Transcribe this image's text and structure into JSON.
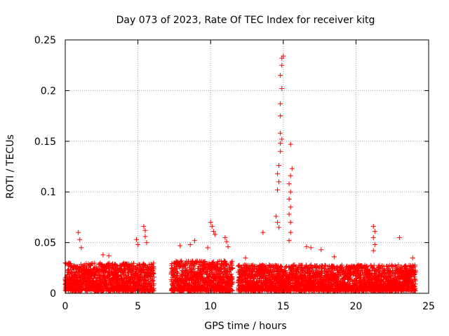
{
  "chart_data": {
    "type": "scatter",
    "title": "Day 073 of 2023, Rate Of TEC Index for receiver kitg",
    "xlabel": "GPS time / hours",
    "ylabel": "ROTI / TECUs",
    "xlim": [
      0,
      25
    ],
    "ylim": [
      0,
      0.25
    ],
    "x_ticks": [
      0,
      5,
      10,
      15,
      20,
      25
    ],
    "x_tick_labels": [
      "0",
      "5",
      "10",
      "15",
      "20",
      "25"
    ],
    "y_ticks": [
      0,
      0.05,
      0.1,
      0.15,
      0.2,
      0.25
    ],
    "y_tick_labels": [
      "0",
      "0.05",
      "0.1",
      "0.15",
      "0.2",
      "0.25"
    ],
    "grid": true,
    "marker": "+",
    "marker_color": "#ff0000",
    "data_segments": [
      {
        "x_start": 0.0,
        "x_end": 6.1,
        "baseline_max": 0.028
      },
      {
        "x_start": 7.3,
        "x_end": 11.5,
        "baseline_max": 0.03
      },
      {
        "x_start": 11.9,
        "x_end": 24.1,
        "baseline_max": 0.026
      }
    ],
    "notable_points": [
      {
        "x": 0.9,
        "y": 0.06
      },
      {
        "x": 1.0,
        "y": 0.053
      },
      {
        "x": 1.1,
        "y": 0.045
      },
      {
        "x": 2.6,
        "y": 0.038
      },
      {
        "x": 3.0,
        "y": 0.037
      },
      {
        "x": 4.9,
        "y": 0.053
      },
      {
        "x": 5.0,
        "y": 0.048
      },
      {
        "x": 5.4,
        "y": 0.066
      },
      {
        "x": 5.5,
        "y": 0.062
      },
      {
        "x": 5.5,
        "y": 0.056
      },
      {
        "x": 5.6,
        "y": 0.05
      },
      {
        "x": 7.9,
        "y": 0.047
      },
      {
        "x": 8.6,
        "y": 0.048
      },
      {
        "x": 8.9,
        "y": 0.052
      },
      {
        "x": 9.8,
        "y": 0.045
      },
      {
        "x": 10.0,
        "y": 0.07
      },
      {
        "x": 10.1,
        "y": 0.066
      },
      {
        "x": 10.2,
        "y": 0.061
      },
      {
        "x": 10.3,
        "y": 0.058
      },
      {
        "x": 11.0,
        "y": 0.055
      },
      {
        "x": 11.1,
        "y": 0.051
      },
      {
        "x": 11.2,
        "y": 0.046
      },
      {
        "x": 12.4,
        "y": 0.035
      },
      {
        "x": 13.6,
        "y": 0.06
      },
      {
        "x": 14.5,
        "y": 0.076
      },
      {
        "x": 14.6,
        "y": 0.07
      },
      {
        "x": 14.7,
        "y": 0.065
      },
      {
        "x": 14.6,
        "y": 0.102
      },
      {
        "x": 14.7,
        "y": 0.11
      },
      {
        "x": 14.6,
        "y": 0.118
      },
      {
        "x": 14.7,
        "y": 0.126
      },
      {
        "x": 14.8,
        "y": 0.14
      },
      {
        "x": 14.8,
        "y": 0.148
      },
      {
        "x": 14.9,
        "y": 0.152
      },
      {
        "x": 14.8,
        "y": 0.158
      },
      {
        "x": 14.8,
        "y": 0.175
      },
      {
        "x": 14.8,
        "y": 0.187
      },
      {
        "x": 14.9,
        "y": 0.202
      },
      {
        "x": 14.8,
        "y": 0.215
      },
      {
        "x": 14.9,
        "y": 0.225
      },
      {
        "x": 14.9,
        "y": 0.232
      },
      {
        "x": 15.0,
        "y": 0.234
      },
      {
        "x": 15.5,
        "y": 0.147
      },
      {
        "x": 15.6,
        "y": 0.123
      },
      {
        "x": 15.5,
        "y": 0.116
      },
      {
        "x": 15.4,
        "y": 0.108
      },
      {
        "x": 15.5,
        "y": 0.1
      },
      {
        "x": 15.4,
        "y": 0.093
      },
      {
        "x": 15.5,
        "y": 0.085
      },
      {
        "x": 15.4,
        "y": 0.078
      },
      {
        "x": 15.5,
        "y": 0.07
      },
      {
        "x": 15.5,
        "y": 0.06
      },
      {
        "x": 15.4,
        "y": 0.052
      },
      {
        "x": 16.6,
        "y": 0.046
      },
      {
        "x": 16.9,
        "y": 0.045
      },
      {
        "x": 17.6,
        "y": 0.043
      },
      {
        "x": 18.5,
        "y": 0.036
      },
      {
        "x": 21.2,
        "y": 0.066
      },
      {
        "x": 21.3,
        "y": 0.061
      },
      {
        "x": 21.2,
        "y": 0.055
      },
      {
        "x": 21.3,
        "y": 0.048
      },
      {
        "x": 21.2,
        "y": 0.042
      },
      {
        "x": 23.0,
        "y": 0.055
      },
      {
        "x": 23.9,
        "y": 0.035
      }
    ]
  }
}
